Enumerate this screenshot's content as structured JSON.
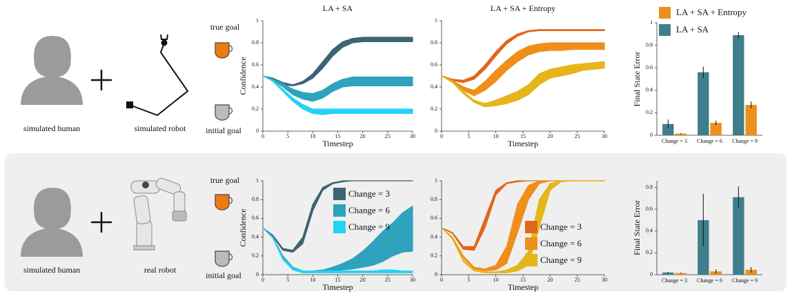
{
  "panels": [
    {
      "human": "simulated human",
      "robot": "simulated robot",
      "true_goal": "true goal",
      "initial_goal": "initial goal"
    },
    {
      "human": "simulated human",
      "robot": "real robot",
      "true_goal": "true goal",
      "initial_goal": "initial goal"
    }
  ],
  "chart_data": [
    {
      "type": "band",
      "title": "LA + SA",
      "xlabel": "Timestep",
      "ylabel": "Confidence",
      "x": [
        0,
        2,
        4,
        6,
        8,
        10,
        12,
        14,
        16,
        18,
        20,
        22,
        24,
        26,
        28,
        30
      ],
      "xlim": [
        0,
        30
      ],
      "ylim": [
        0,
        1
      ],
      "xticks": [
        0,
        5,
        10,
        15,
        20,
        25,
        30
      ],
      "yticks": [
        0,
        0.2,
        0.4,
        0.6,
        0.8,
        1
      ],
      "series": [
        {
          "color": "#3c6472",
          "upper": [
            0.5,
            0.48,
            0.44,
            0.42,
            0.45,
            0.52,
            0.63,
            0.74,
            0.81,
            0.84,
            0.85,
            0.85,
            0.85,
            0.85,
            0.85,
            0.85
          ],
          "lower": [
            0.5,
            0.47,
            0.42,
            0.41,
            0.43,
            0.48,
            0.57,
            0.68,
            0.76,
            0.8,
            0.81,
            0.81,
            0.81,
            0.81,
            0.81,
            0.81
          ]
        },
        {
          "color": "#2fa2bd",
          "upper": [
            0.5,
            0.47,
            0.43,
            0.38,
            0.35,
            0.34,
            0.37,
            0.43,
            0.47,
            0.49,
            0.49,
            0.49,
            0.49,
            0.49,
            0.49,
            0.49
          ],
          "lower": [
            0.5,
            0.46,
            0.4,
            0.33,
            0.29,
            0.27,
            0.3,
            0.36,
            0.4,
            0.41,
            0.41,
            0.41,
            0.41,
            0.41,
            0.41,
            0.41
          ]
        },
        {
          "color": "#22d3f5",
          "upper": [
            0.5,
            0.46,
            0.38,
            0.3,
            0.24,
            0.2,
            0.2,
            0.2,
            0.2,
            0.2,
            0.2,
            0.2,
            0.2,
            0.2,
            0.2,
            0.2
          ],
          "lower": [
            0.5,
            0.45,
            0.36,
            0.27,
            0.2,
            0.16,
            0.15,
            0.16,
            0.16,
            0.16,
            0.16,
            0.16,
            0.16,
            0.16,
            0.16,
            0.16
          ]
        }
      ]
    },
    {
      "type": "band",
      "title": "LA + SA + Entropy",
      "xlabel": "Timestep",
      "x": [
        0,
        2,
        4,
        6,
        8,
        10,
        12,
        14,
        16,
        18,
        20,
        22,
        24,
        26,
        28,
        30
      ],
      "xlim": [
        0,
        30
      ],
      "ylim": [
        0,
        1
      ],
      "xticks": [
        0,
        5,
        10,
        15,
        20,
        25,
        30
      ],
      "yticks": [
        0,
        0.2,
        0.4,
        0.6,
        0.8,
        1
      ],
      "series": [
        {
          "color": "#e0661a",
          "upper": [
            0.5,
            0.47,
            0.46,
            0.5,
            0.6,
            0.72,
            0.82,
            0.88,
            0.91,
            0.92,
            0.92,
            0.92,
            0.92,
            0.92,
            0.92,
            0.92
          ],
          "lower": [
            0.5,
            0.46,
            0.44,
            0.47,
            0.56,
            0.68,
            0.79,
            0.86,
            0.9,
            0.91,
            0.91,
            0.91,
            0.91,
            0.91,
            0.91,
            0.91
          ]
        },
        {
          "color": "#ee8f1a",
          "upper": [
            0.5,
            0.46,
            0.4,
            0.37,
            0.45,
            0.55,
            0.64,
            0.72,
            0.77,
            0.79,
            0.8,
            0.8,
            0.8,
            0.8,
            0.8,
            0.8
          ],
          "lower": [
            0.5,
            0.45,
            0.37,
            0.32,
            0.37,
            0.45,
            0.55,
            0.63,
            0.69,
            0.72,
            0.73,
            0.73,
            0.74,
            0.74,
            0.74,
            0.74
          ]
        },
        {
          "color": "#e6b51a",
          "upper": [
            0.5,
            0.45,
            0.36,
            0.28,
            0.25,
            0.28,
            0.32,
            0.36,
            0.42,
            0.52,
            0.56,
            0.58,
            0.6,
            0.61,
            0.62,
            0.63
          ],
          "lower": [
            0.5,
            0.44,
            0.34,
            0.26,
            0.22,
            0.23,
            0.25,
            0.28,
            0.33,
            0.42,
            0.48,
            0.5,
            0.52,
            0.55,
            0.56,
            0.57
          ]
        }
      ]
    },
    {
      "type": "bar",
      "ylabel": "Final State Error",
      "categories": [
        "Change = 3",
        "Change = 6",
        "Change = 9"
      ],
      "ylim": [
        0,
        1
      ],
      "yticks": [
        0,
        0.2,
        0.4,
        0.6,
        0.8,
        1
      ],
      "legend": "top",
      "series": [
        {
          "name": "LA + SA + Entropy",
          "color": "#ec8f1c",
          "values": [
            0.015,
            0.11,
            0.27
          ],
          "errors": [
            0.005,
            0.02,
            0.03
          ]
        },
        {
          "name": "LA + SA",
          "color": "#3e7f8b",
          "values": [
            0.1,
            0.56,
            0.89
          ],
          "errors": [
            0.04,
            0.05,
            0.03
          ]
        }
      ]
    },
    {
      "type": "band",
      "xlabel": "Timestep",
      "ylabel": "Confidence",
      "legend": "upper right",
      "x": [
        0,
        2,
        4,
        6,
        8,
        10,
        12,
        14,
        16,
        18,
        20,
        22,
        24,
        26,
        28,
        30
      ],
      "xlim": [
        0,
        30
      ],
      "ylim": [
        0,
        1
      ],
      "xticks": [
        0,
        5,
        10,
        15,
        20,
        25,
        30
      ],
      "yticks": [
        0,
        0.2,
        0.4,
        0.6,
        0.8,
        1
      ],
      "series": [
        {
          "name": "Change = 3",
          "color": "#3c6472",
          "upper": [
            0.5,
            0.42,
            0.28,
            0.26,
            0.4,
            0.75,
            0.93,
            0.98,
            1,
            1,
            1,
            1,
            1,
            1,
            1,
            1
          ],
          "lower": [
            0.5,
            0.41,
            0.26,
            0.24,
            0.33,
            0.68,
            0.9,
            0.97,
            0.99,
            1,
            1,
            1,
            1,
            1,
            1,
            1
          ]
        },
        {
          "name": "Change = 6",
          "color": "#2fa2bd",
          "upper": [
            0.5,
            0.4,
            0.2,
            0.08,
            0.04,
            0.04,
            0.05,
            0.08,
            0.12,
            0.17,
            0.25,
            0.35,
            0.46,
            0.55,
            0.66,
            0.73
          ],
          "lower": [
            0.5,
            0.39,
            0.18,
            0.06,
            0.02,
            0.02,
            0.03,
            0.04,
            0.05,
            0.06,
            0.08,
            0.1,
            0.14,
            0.2,
            0.24,
            0.25
          ]
        },
        {
          "name": "Change = 9",
          "color": "#22d3f5",
          "upper": [
            0.5,
            0.4,
            0.18,
            0.07,
            0.04,
            0.04,
            0.04,
            0.04,
            0.04,
            0.04,
            0.04,
            0.04,
            0.05,
            0.05,
            0.04,
            0.04
          ],
          "lower": [
            0.5,
            0.39,
            0.16,
            0.05,
            0.02,
            0.02,
            0.02,
            0.02,
            0.02,
            0.02,
            0.02,
            0.02,
            0.02,
            0.02,
            0.02,
            0.02
          ]
        }
      ]
    },
    {
      "type": "band",
      "xlabel": "Timestep",
      "legend": "lower right",
      "x": [
        0,
        2,
        4,
        6,
        8,
        10,
        12,
        14,
        16,
        18,
        20,
        22,
        24,
        26,
        28,
        30
      ],
      "xlim": [
        0,
        30
      ],
      "ylim": [
        0,
        1
      ],
      "xticks": [
        0,
        5,
        10,
        15,
        20,
        25,
        30
      ],
      "yticks": [
        0,
        0.2,
        0.4,
        0.6,
        0.8,
        1
      ],
      "series": [
        {
          "name": "Change = 3",
          "color": "#e0661a",
          "upper": [
            0.5,
            0.45,
            0.3,
            0.3,
            0.6,
            0.9,
            0.98,
            1,
            1,
            1,
            1,
            1,
            1,
            1,
            1,
            1
          ],
          "lower": [
            0.5,
            0.44,
            0.27,
            0.26,
            0.5,
            0.85,
            0.97,
            0.99,
            1,
            1,
            1,
            1,
            1,
            1,
            1,
            1
          ]
        },
        {
          "name": "Change = 6",
          "color": "#ee8f1a",
          "upper": [
            0.5,
            0.4,
            0.2,
            0.08,
            0.06,
            0.1,
            0.3,
            0.75,
            0.95,
            1,
            1,
            1,
            1,
            1,
            1,
            1
          ],
          "lower": [
            0.5,
            0.39,
            0.18,
            0.06,
            0.04,
            0.05,
            0.12,
            0.45,
            0.8,
            0.97,
            1,
            1,
            1,
            1,
            1,
            1
          ]
        },
        {
          "name": "Change = 9",
          "color": "#e6b51a",
          "upper": [
            0.5,
            0.39,
            0.16,
            0.05,
            0.03,
            0.03,
            0.05,
            0.1,
            0.25,
            0.8,
            0.97,
            1,
            1,
            1,
            1,
            1
          ],
          "lower": [
            0.5,
            0.38,
            0.14,
            0.04,
            0.02,
            0.02,
            0.02,
            0.04,
            0.1,
            0.5,
            0.9,
            0.99,
            1,
            1,
            1,
            1
          ]
        }
      ]
    },
    {
      "type": "bar",
      "ylabel": "Final State Error",
      "categories": [
        "Change = 3",
        "Change = 6",
        "Change = 9"
      ],
      "ylim": [
        0,
        0.86
      ],
      "yticks": [
        0,
        0.2,
        0.4,
        0.6,
        0.8
      ],
      "series": [
        {
          "color": "#ec8f1c",
          "values": [
            0.015,
            0.03,
            0.045
          ],
          "errors": [
            0.005,
            0.02,
            0.025
          ]
        },
        {
          "color": "#3e7f8b",
          "values": [
            0.02,
            0.5,
            0.71
          ],
          "errors": [
            0.005,
            0.24,
            0.1
          ]
        }
      ]
    }
  ]
}
